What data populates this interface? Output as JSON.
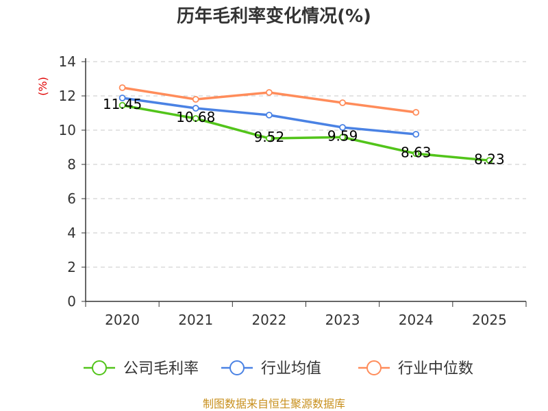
{
  "chart_data": {
    "type": "line",
    "title": "历年毛利率变化情况(%)",
    "ylabel": "(%)",
    "xlabel": "",
    "categories": [
      "2020",
      "2021",
      "2022",
      "2023",
      "2024",
      "2025"
    ],
    "ylim": [
      0,
      14
    ],
    "yticks": [
      0,
      2,
      4,
      6,
      8,
      10,
      12,
      14
    ],
    "grid": true,
    "legend_position": "bottom",
    "series": [
      {
        "name": "公司毛利率",
        "color": "#52c41a",
        "values": [
          11.45,
          10.68,
          9.52,
          9.59,
          8.63,
          8.23
        ],
        "data_labels": [
          "11.45",
          "10.68",
          "9.52",
          "9.59",
          "8.63",
          "8.23"
        ]
      },
      {
        "name": "行业均值",
        "color": "#4a82e4",
        "values": [
          11.88,
          11.28,
          10.88,
          10.16,
          9.76,
          null
        ]
      },
      {
        "name": "行业中位数",
        "color": "#ff8c5a",
        "values": [
          12.48,
          11.8,
          12.2,
          11.6,
          11.04,
          null
        ]
      }
    ]
  },
  "footer": "制图数据来自恒生聚源数据库"
}
